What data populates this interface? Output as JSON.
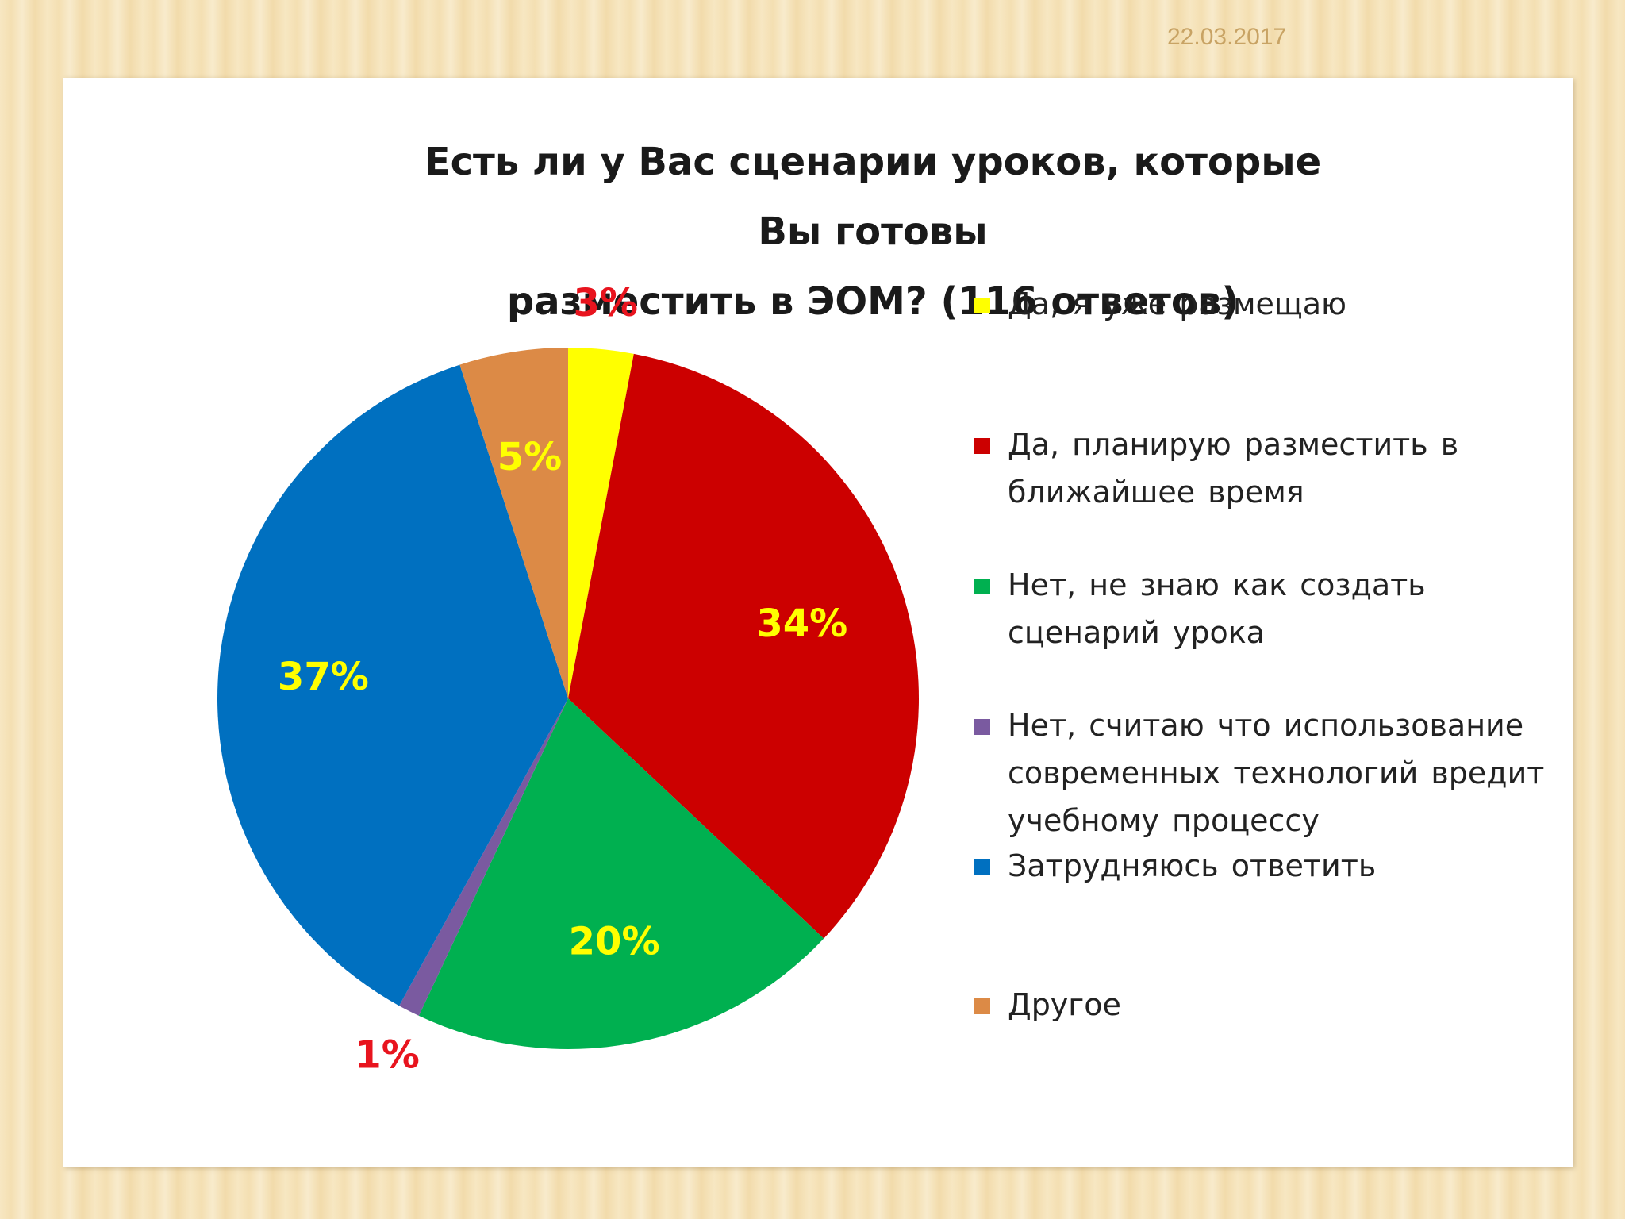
{
  "slide": {
    "date": "22.03.2017"
  },
  "chart_data": {
    "type": "pie",
    "title_lines": [
      "Есть ли у Вас сценарии уроков, которые Вы готовы",
      "разместить в ЭОМ? (116 ответов)"
    ],
    "slices": [
      {
        "label": "Да, я уже размещаю",
        "value": 3,
        "display": "3%",
        "color": "#ffff00",
        "label_color": "#e8141e"
      },
      {
        "label": "Да, планирую разместить в ближайшее время",
        "value": 34,
        "display": "34%",
        "color": "#cc0000",
        "label_color": "#ffff00"
      },
      {
        "label": "Нет, не знаю как создать сценарий урока",
        "value": 20,
        "display": "20%",
        "color": "#00b050",
        "label_color": "#ffff00"
      },
      {
        "label": "Нет, считаю что использование современных технологий вредит учебному процессу",
        "value": 1,
        "display": "1%",
        "color": "#7a5aa0",
        "label_color": "#e8141e"
      },
      {
        "label": "Затрудняюсь ответить",
        "value": 37,
        "display": "37%",
        "color": "#0070c0",
        "label_color": "#ffff00"
      },
      {
        "label": "Другое",
        "value": 5,
        "display": "5%",
        "color": "#dc8a46",
        "label_color": "#ffff00"
      }
    ],
    "legend_placement": "right"
  }
}
